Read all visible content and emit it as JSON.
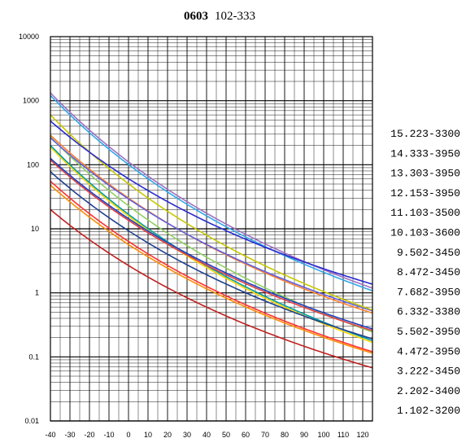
{
  "chart_data": {
    "type": "line",
    "title_bold": "0603",
    "title_rest": "102-333",
    "xlabel": "",
    "ylabel": "",
    "x_scale": "linear",
    "y_scale": "log",
    "xlim": [
      -40,
      125
    ],
    "ylim": [
      0.01,
      10000
    ],
    "x_ticks": [
      "-40",
      "-30",
      "-20",
      "-10",
      "0",
      "10",
      "20",
      "30",
      "40",
      "50",
      "60",
      "70",
      "80",
      "90",
      "100",
      "110",
      "120"
    ],
    "y_ticks": [
      "10000",
      "1000",
      "100",
      "10",
      "1",
      "0.1",
      "0.01"
    ],
    "grid": true,
    "legend_position": "right",
    "series": [
      {
        "name": "1.102-3200",
        "color": "#c02020",
        "r25": 1.0,
        "b": 3200
      },
      {
        "name": "2.202-3400",
        "color": "#ff8c00",
        "r25": 2.0,
        "b": 3400
      },
      {
        "name": "3.222-3450",
        "color": "#ff3030",
        "r25": 2.2,
        "b": 3450
      },
      {
        "name": "4.472-3950",
        "color": "#ffd400",
        "r25": 4.7,
        "b": 3950
      },
      {
        "name": "5.502-3950",
        "color": "#00a0a0",
        "r25": 5.0,
        "b": 3950
      },
      {
        "name": "6.332-3380",
        "color": "#1f3f8f",
        "r25": 3.3,
        "b": 3380
      },
      {
        "name": "7.682-3950",
        "color": "#90d060",
        "r25": 6.8,
        "b": 3950
      },
      {
        "name": "8.472-3450",
        "color": "#e04040",
        "r25": 4.7,
        "b": 3450
      },
      {
        "name": "9.502-3450",
        "color": "#2040c0",
        "r25": 5.0,
        "b": 3450
      },
      {
        "name": "10.103-3600",
        "color": "#ff7f2a",
        "r25": 10.0,
        "b": 3600
      },
      {
        "name": "11.103-3500",
        "color": "#6060e0",
        "r25": 10.0,
        "b": 3500
      },
      {
        "name": "12.153-3950",
        "color": "#c8c800",
        "r25": 15.0,
        "b": 3950
      },
      {
        "name": "13.303-3950",
        "color": "#30a8e8",
        "r25": 30.0,
        "b": 3950
      },
      {
        "name": "14.333-3950",
        "color": "#a070c0",
        "r25": 33.0,
        "b": 3950
      },
      {
        "name": "15.223-3300",
        "color": "#2a2ad0",
        "r25": 22.0,
        "b": 3300
      }
    ]
  }
}
